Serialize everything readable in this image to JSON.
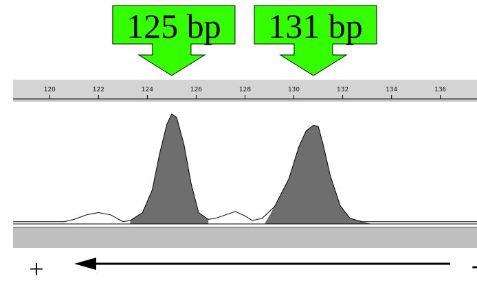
{
  "chart_data": {
    "type": "line",
    "title": "",
    "xlabel": "",
    "ylabel": "",
    "xlim": [
      118.5,
      137.5
    ],
    "ylim": [
      0,
      1
    ],
    "grid": false,
    "x_ticks": [
      120,
      122,
      124,
      126,
      128,
      130,
      132,
      134,
      136
    ],
    "series": [
      {
        "x": [
          118.5,
          120.0,
          120.6,
          121.0,
          121.5,
          122.0,
          122.5,
          123.0,
          123.3,
          123.8,
          124.2,
          124.5,
          124.8,
          125.0,
          125.2,
          125.5,
          125.8,
          126.1,
          126.5,
          126.8,
          127.2,
          127.6,
          128.0,
          128.3,
          128.7,
          129.2,
          129.8,
          130.2,
          130.5,
          130.8,
          131.0,
          131.2,
          131.5,
          131.9,
          132.3,
          132.8,
          133.3,
          133.8,
          134.5,
          135.5,
          137.5
        ],
        "y": [
          0.02,
          0.02,
          0.02,
          0.04,
          0.08,
          0.1,
          0.08,
          0.02,
          0.03,
          0.1,
          0.3,
          0.62,
          0.88,
          0.97,
          0.94,
          0.7,
          0.35,
          0.1,
          0.04,
          0.05,
          0.08,
          0.11,
          0.07,
          0.03,
          0.05,
          0.15,
          0.4,
          0.68,
          0.82,
          0.87,
          0.86,
          0.7,
          0.42,
          0.16,
          0.05,
          0.02,
          0.02,
          0.02,
          0.02,
          0.02,
          0.02
        ]
      }
    ],
    "filled_peaks": [
      [
        123.3,
        126.5
      ],
      [
        128.8,
        133.2
      ]
    ]
  },
  "annotations": [
    {
      "label": "125 bp",
      "x": 125
    },
    {
      "label": "131 bp",
      "x": 130.8
    }
  ],
  "direction": {
    "left_symbol": "+",
    "right_symbol": "-"
  },
  "colors": {
    "callout": "#33ff00",
    "callout_border": "#000000",
    "peak_fill": "#6e6e6e",
    "ruler": "#d4d4d4",
    "band": "#c0c0c0"
  }
}
